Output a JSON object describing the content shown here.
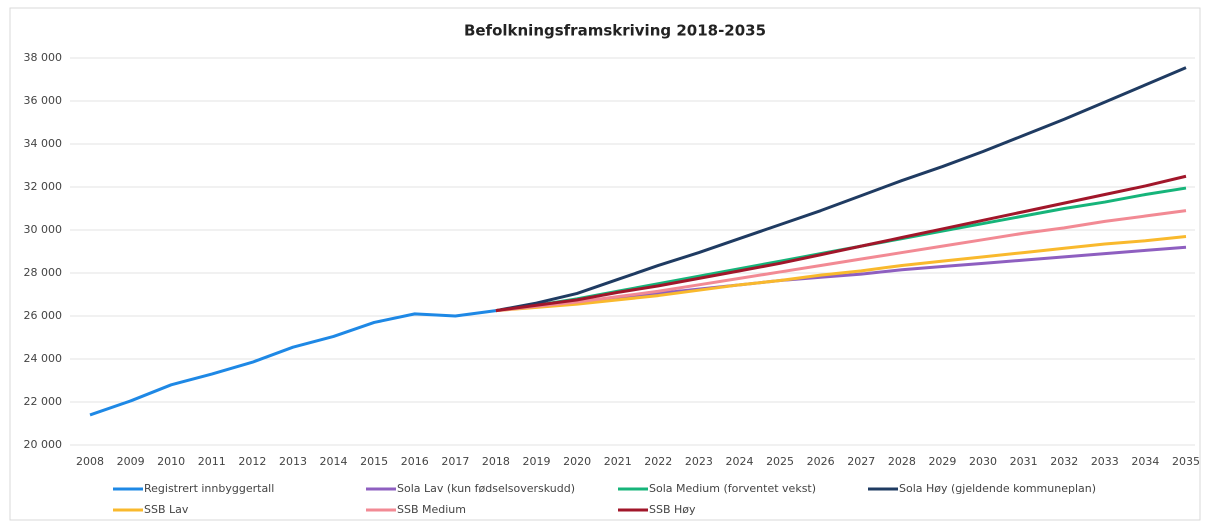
{
  "chart_data": {
    "type": "line",
    "title": "Befolkningsframskriving 2018-2035",
    "categories": [
      "2008",
      "2009",
      "2010",
      "2011",
      "2012",
      "2013",
      "2014",
      "2015",
      "2016",
      "2017",
      "2018",
      "2019",
      "2020",
      "2021",
      "2022",
      "2023",
      "2024",
      "2025",
      "2026",
      "2027",
      "2028",
      "2029",
      "2030",
      "2031",
      "2032",
      "2033",
      "2034",
      "2035"
    ],
    "ylim": [
      20000,
      38000
    ],
    "yticks": [
      {
        "value": 20000,
        "label": "20 000"
      },
      {
        "value": 22000,
        "label": "22 000"
      },
      {
        "value": 24000,
        "label": "24 000"
      },
      {
        "value": 26000,
        "label": "26 000"
      },
      {
        "value": 28000,
        "label": "28 000"
      },
      {
        "value": 30000,
        "label": "30 000"
      },
      {
        "value": 32000,
        "label": "32 000"
      },
      {
        "value": 34000,
        "label": "34 000"
      },
      {
        "value": 36000,
        "label": "36 000"
      },
      {
        "value": 38000,
        "label": "38 000"
      }
    ],
    "grid": true,
    "legend": "bottom",
    "series": [
      {
        "name": "Registrert innbyggertall",
        "color": "#1e88e5",
        "values": [
          21400,
          22050,
          22800,
          23300,
          23850,
          24550,
          25050,
          25700,
          26100,
          26000,
          26250,
          null,
          null,
          null,
          null,
          null,
          null,
          null,
          null,
          null,
          null,
          null,
          null,
          null,
          null,
          null,
          null,
          null
        ]
      },
      {
        "name": "Sola Lav (kun fødselsoverskudd)",
        "color": "#8e5fc0",
        "values": [
          null,
          null,
          null,
          null,
          null,
          null,
          null,
          null,
          null,
          null,
          26250,
          26450,
          26650,
          26850,
          27050,
          27250,
          27450,
          27650,
          27800,
          27950,
          28150,
          28300,
          28450,
          28600,
          28750,
          28900,
          29050,
          29200
        ]
      },
      {
        "name": "Sola Medium (forventet vekst)",
        "color": "#16b47a",
        "values": [
          null,
          null,
          null,
          null,
          null,
          null,
          null,
          null,
          null,
          null,
          26250,
          26500,
          26800,
          27150,
          27500,
          27850,
          28200,
          28550,
          28900,
          29250,
          29600,
          29950,
          30300,
          30650,
          31000,
          31300,
          31650,
          31950
        ]
      },
      {
        "name": "Sola Høy (gjeldende kommuneplan)",
        "color": "#1f3b62",
        "values": [
          null,
          null,
          null,
          null,
          null,
          null,
          null,
          null,
          null,
          null,
          26250,
          26600,
          27050,
          27700,
          28350,
          28950,
          29600,
          30250,
          30900,
          31600,
          32300,
          32950,
          33650,
          34400,
          35150,
          35950,
          36750,
          37550
        ]
      },
      {
        "name": "SSB Lav",
        "color": "#f9b92d",
        "values": [
          null,
          null,
          null,
          null,
          null,
          null,
          null,
          null,
          null,
          null,
          26250,
          26400,
          26550,
          26750,
          26950,
          27200,
          27450,
          27650,
          27900,
          28100,
          28350,
          28550,
          28750,
          28950,
          29150,
          29350,
          29500,
          29700
        ]
      },
      {
        "name": "SSB Medium",
        "color": "#f28a94",
        "values": [
          null,
          null,
          null,
          null,
          null,
          null,
          null,
          null,
          null,
          null,
          26250,
          26450,
          26650,
          26900,
          27150,
          27450,
          27750,
          28050,
          28350,
          28650,
          28950,
          29250,
          29550,
          29850,
          30100,
          30400,
          30650,
          30900
        ]
      },
      {
        "name": "SSB Høy",
        "color": "#a1162a",
        "values": [
          null,
          null,
          null,
          null,
          null,
          null,
          null,
          null,
          null,
          null,
          26250,
          26500,
          26750,
          27100,
          27400,
          27750,
          28100,
          28450,
          28850,
          29250,
          29650,
          30050,
          30450,
          30850,
          31250,
          31650,
          32050,
          32500
        ]
      }
    ]
  }
}
